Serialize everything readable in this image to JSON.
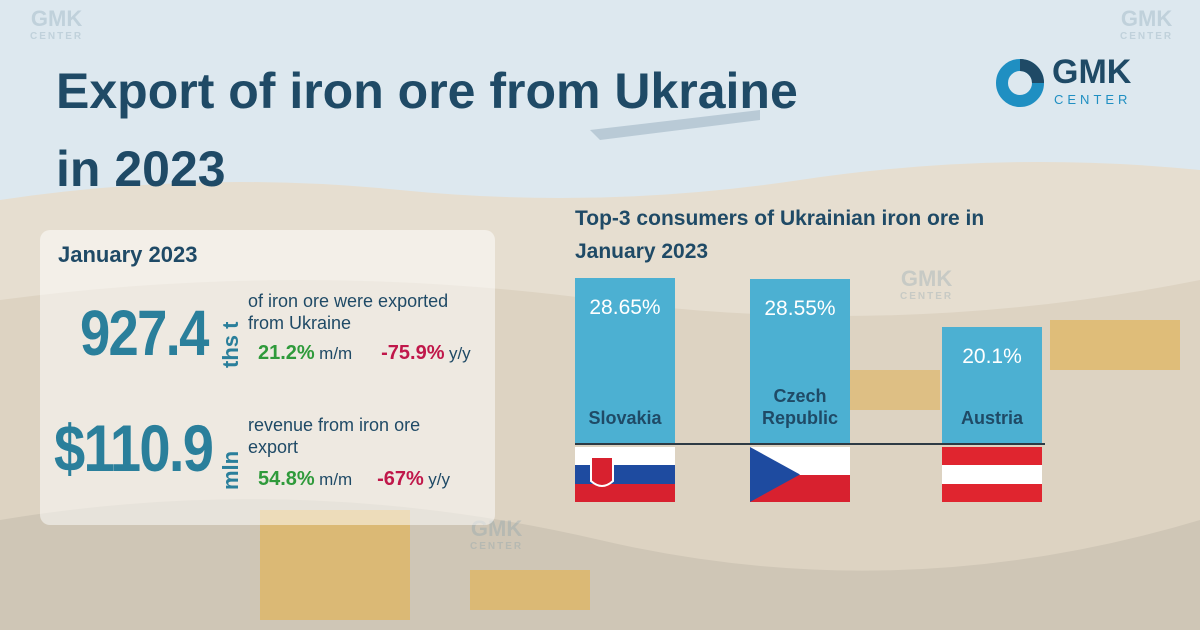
{
  "header": {
    "title_line1": "Export of iron ore from Ukraine",
    "title_line2": "in 2023"
  },
  "logo": {
    "name": "GMK",
    "sub": "CENTER"
  },
  "stats": {
    "period": "January 2023",
    "volume": {
      "value": "927.4",
      "unit": "ths t",
      "text": "of iron ore were exported from Ukraine",
      "mm": "21.2%",
      "mm_label": "m/m",
      "yy": "-75.9%",
      "yy_label": "y/y"
    },
    "revenue": {
      "value": "$110.9",
      "unit": "mln",
      "text": "revenue from iron ore export",
      "mm": "54.8%",
      "mm_label": "m/m",
      "yy": "-67%",
      "yy_label": "y/y"
    }
  },
  "chart_data": {
    "type": "bar",
    "title": "Top-3 consumers of Ukrainian iron ore in January 2023",
    "categories": [
      "Slovakia",
      "Czech Republic",
      "Austria"
    ],
    "values": [
      28.65,
      28.55,
      20.1
    ],
    "value_labels": [
      "28.65%",
      "28.55%",
      "20.1%"
    ],
    "color": "#4cb0d2"
  }
}
